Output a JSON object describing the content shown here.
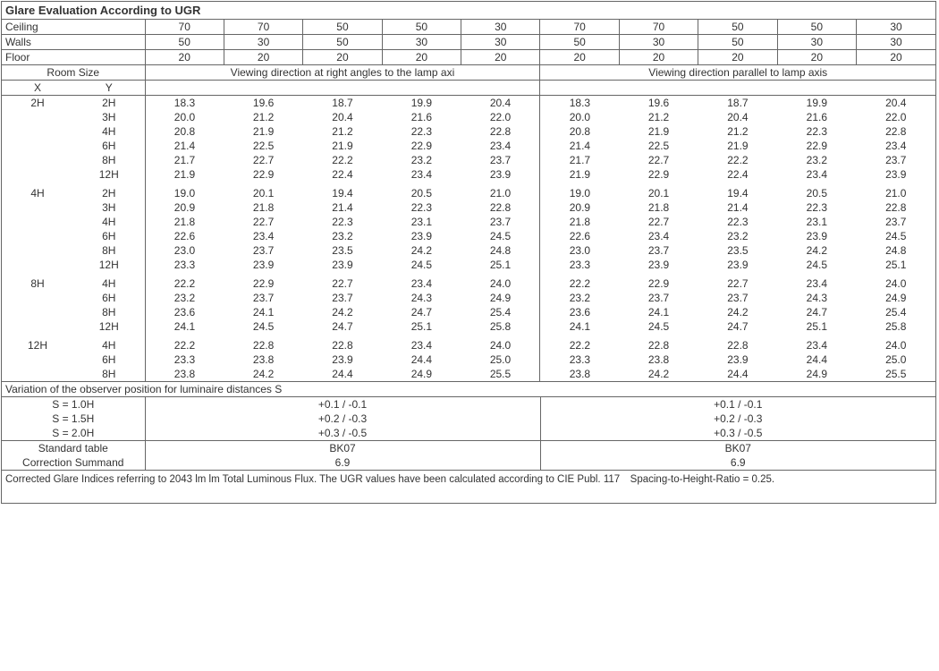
{
  "title": "Glare Evaluation According to UGR",
  "header_rows": [
    {
      "label": "Ceiling",
      "vals": [
        "70",
        "70",
        "50",
        "50",
        "30",
        "70",
        "70",
        "50",
        "50",
        "30"
      ]
    },
    {
      "label": "Walls",
      "vals": [
        "50",
        "30",
        "50",
        "30",
        "30",
        "50",
        "30",
        "50",
        "30",
        "30"
      ]
    },
    {
      "label": "Floor",
      "vals": [
        "20",
        "20",
        "20",
        "20",
        "20",
        "20",
        "20",
        "20",
        "20",
        "20"
      ]
    }
  ],
  "room_size_label": "Room Size",
  "room_x": "X",
  "room_y": "Y",
  "view_right": "Viewing direction at right angles to the lamp axi",
  "view_parallel": "Viewing direction parallel to lamp axis",
  "groups": [
    {
      "x": "2H",
      "rows": [
        {
          "y": "2H",
          "v": [
            "18.3",
            "19.6",
            "18.7",
            "19.9",
            "20.4",
            "18.3",
            "19.6",
            "18.7",
            "19.9",
            "20.4"
          ]
        },
        {
          "y": "3H",
          "v": [
            "20.0",
            "21.2",
            "20.4",
            "21.6",
            "22.0",
            "20.0",
            "21.2",
            "20.4",
            "21.6",
            "22.0"
          ]
        },
        {
          "y": "4H",
          "v": [
            "20.8",
            "21.9",
            "21.2",
            "22.3",
            "22.8",
            "20.8",
            "21.9",
            "21.2",
            "22.3",
            "22.8"
          ]
        },
        {
          "y": "6H",
          "v": [
            "21.4",
            "22.5",
            "21.9",
            "22.9",
            "23.4",
            "21.4",
            "22.5",
            "21.9",
            "22.9",
            "23.4"
          ]
        },
        {
          "y": "8H",
          "v": [
            "21.7",
            "22.7",
            "22.2",
            "23.2",
            "23.7",
            "21.7",
            "22.7",
            "22.2",
            "23.2",
            "23.7"
          ]
        },
        {
          "y": "12H",
          "v": [
            "21.9",
            "22.9",
            "22.4",
            "23.4",
            "23.9",
            "21.9",
            "22.9",
            "22.4",
            "23.4",
            "23.9"
          ]
        }
      ]
    },
    {
      "x": "4H",
      "rows": [
        {
          "y": "2H",
          "v": [
            "19.0",
            "20.1",
            "19.4",
            "20.5",
            "21.0",
            "19.0",
            "20.1",
            "19.4",
            "20.5",
            "21.0"
          ]
        },
        {
          "y": "3H",
          "v": [
            "20.9",
            "21.8",
            "21.4",
            "22.3",
            "22.8",
            "20.9",
            "21.8",
            "21.4",
            "22.3",
            "22.8"
          ]
        },
        {
          "y": "4H",
          "v": [
            "21.8",
            "22.7",
            "22.3",
            "23.1",
            "23.7",
            "21.8",
            "22.7",
            "22.3",
            "23.1",
            "23.7"
          ]
        },
        {
          "y": "6H",
          "v": [
            "22.6",
            "23.4",
            "23.2",
            "23.9",
            "24.5",
            "22.6",
            "23.4",
            "23.2",
            "23.9",
            "24.5"
          ]
        },
        {
          "y": "8H",
          "v": [
            "23.0",
            "23.7",
            "23.5",
            "24.2",
            "24.8",
            "23.0",
            "23.7",
            "23.5",
            "24.2",
            "24.8"
          ]
        },
        {
          "y": "12H",
          "v": [
            "23.3",
            "23.9",
            "23.9",
            "24.5",
            "25.1",
            "23.3",
            "23.9",
            "23.9",
            "24.5",
            "25.1"
          ]
        }
      ]
    },
    {
      "x": "8H",
      "rows": [
        {
          "y": "4H",
          "v": [
            "22.2",
            "22.9",
            "22.7",
            "23.4",
            "24.0",
            "22.2",
            "22.9",
            "22.7",
            "23.4",
            "24.0"
          ]
        },
        {
          "y": "6H",
          "v": [
            "23.2",
            "23.7",
            "23.7",
            "24.3",
            "24.9",
            "23.2",
            "23.7",
            "23.7",
            "24.3",
            "24.9"
          ]
        },
        {
          "y": "8H",
          "v": [
            "23.6",
            "24.1",
            "24.2",
            "24.7",
            "25.4",
            "23.6",
            "24.1",
            "24.2",
            "24.7",
            "25.4"
          ]
        },
        {
          "y": "12H",
          "v": [
            "24.1",
            "24.5",
            "24.7",
            "25.1",
            "25.8",
            "24.1",
            "24.5",
            "24.7",
            "25.1",
            "25.8"
          ]
        }
      ]
    },
    {
      "x": "12H",
      "rows": [
        {
          "y": "4H",
          "v": [
            "22.2",
            "22.8",
            "22.8",
            "23.4",
            "24.0",
            "22.2",
            "22.8",
            "22.8",
            "23.4",
            "24.0"
          ]
        },
        {
          "y": "6H",
          "v": [
            "23.3",
            "23.8",
            "23.9",
            "24.4",
            "25.0",
            "23.3",
            "23.8",
            "23.9",
            "24.4",
            "25.0"
          ]
        },
        {
          "y": "8H",
          "v": [
            "23.8",
            "24.2",
            "24.4",
            "24.9",
            "25.5",
            "23.8",
            "24.2",
            "24.4",
            "24.9",
            "25.5"
          ]
        }
      ]
    }
  ],
  "variation_heading": "Variation of the observer position for luminaire distances S",
  "variations": [
    {
      "s": "S = 1.0H",
      "a": "+0.1 / -0.1",
      "b": "+0.1 / -0.1"
    },
    {
      "s": "S = 1.5H",
      "a": "+0.2 / -0.3",
      "b": "+0.2 / -0.3"
    },
    {
      "s": "S = 2.0H",
      "a": "+0.3 / -0.5",
      "b": "+0.3 / -0.5"
    }
  ],
  "std_table_label": "Standard table",
  "std_table_a": "BK07",
  "std_table_b": "BK07",
  "corr_label": "Correction Summand",
  "corr_a": "6.9",
  "corr_b": "6.9",
  "footer": "Corrected Glare Indices referring to 2043 lm lm Total Luminous Flux. The UGR values have been calculated according to CIE Publ. 117 Spacing-to-Height-Ratio = 0.25.",
  "colors": {
    "border": "#666666",
    "text": "#333333",
    "bg": "#ffffff"
  },
  "fontsize": 12
}
